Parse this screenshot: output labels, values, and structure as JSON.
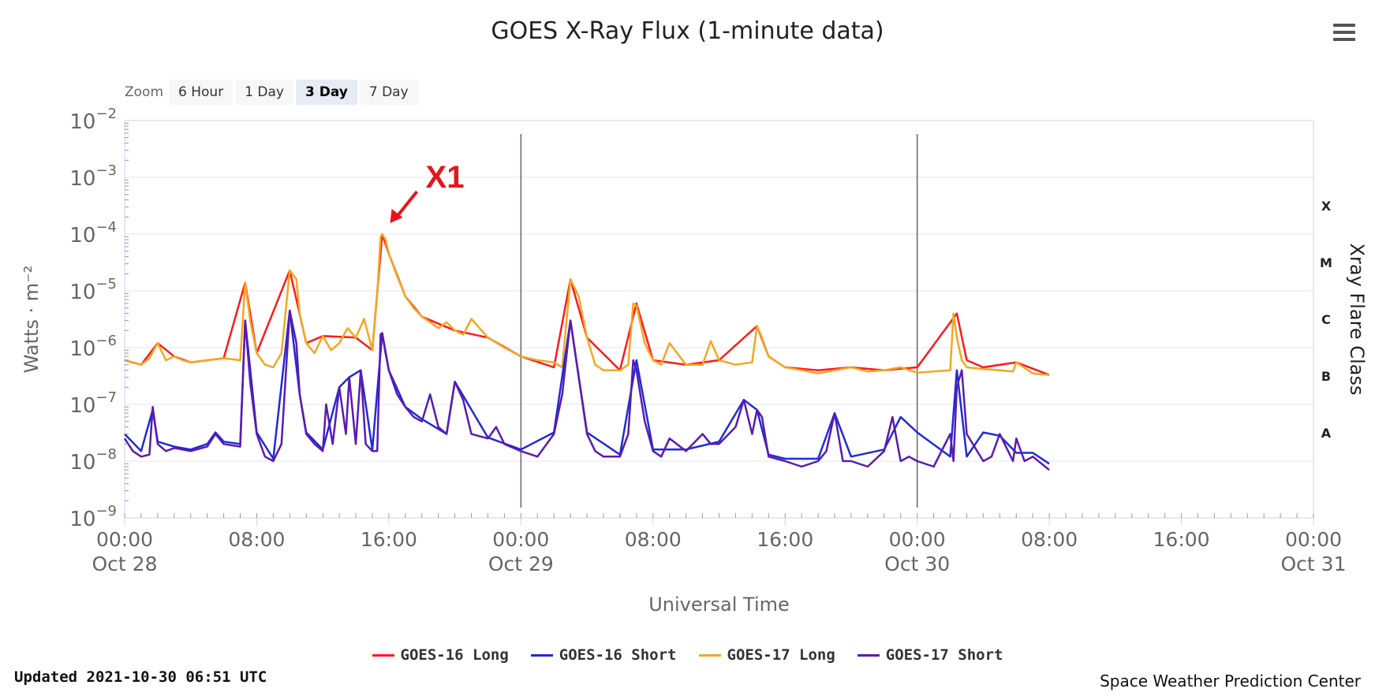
{
  "title": "GOES X-Ray Flux (1-minute data)",
  "zoom": {
    "label": "Zoom",
    "options": [
      "6 Hour",
      "1 Day",
      "3 Day",
      "7 Day"
    ],
    "selected": "3 Day"
  },
  "legend": [
    {
      "name": "GOES-16 Long",
      "color": "#ff1a1a"
    },
    {
      "name": "GOES-16 Short",
      "color": "#1f2bd6"
    },
    {
      "name": "GOES-17 Long",
      "color": "#f5a623"
    },
    {
      "name": "GOES-17 Short",
      "color": "#5a1bb0"
    }
  ],
  "footer": {
    "updated": "Updated 2021-10-30 06:51 UTC",
    "credit": "Space Weather Prediction Center"
  },
  "annotation": {
    "text": "X1",
    "color": "#e8141c"
  },
  "chart_data": {
    "type": "line",
    "title": "GOES X-Ray Flux (1-minute data)",
    "xlabel": "Universal Time",
    "ylabel": "Watts · m⁻²",
    "y2label": "Xray Flare Class",
    "yscale": "log",
    "ylim_exponent": [
      -9,
      -2
    ],
    "xlim_hours": [
      0,
      72
    ],
    "y_ticks": [
      {
        "exp": -2,
        "base": "10",
        "sup": "−2"
      },
      {
        "exp": -3,
        "base": "10",
        "sup": "−3"
      },
      {
        "exp": -4,
        "base": "10",
        "sup": "−4"
      },
      {
        "exp": -5,
        "base": "10",
        "sup": "−5"
      },
      {
        "exp": -6,
        "base": "10",
        "sup": "−6"
      },
      {
        "exp": -7,
        "base": "10",
        "sup": "−7"
      },
      {
        "exp": -8,
        "base": "10",
        "sup": "−8"
      },
      {
        "exp": -9,
        "base": "10",
        "sup": "−9"
      }
    ],
    "x_ticks": [
      {
        "hour": 0,
        "time": "00:00",
        "date": "Oct 28"
      },
      {
        "hour": 8,
        "time": "08:00",
        "date": ""
      },
      {
        "hour": 16,
        "time": "16:00",
        "date": ""
      },
      {
        "hour": 24,
        "time": "00:00",
        "date": "Oct 29"
      },
      {
        "hour": 32,
        "time": "08:00",
        "date": ""
      },
      {
        "hour": 40,
        "time": "16:00",
        "date": ""
      },
      {
        "hour": 48,
        "time": "00:00",
        "date": "Oct 30"
      },
      {
        "hour": 56,
        "time": "08:00",
        "date": ""
      },
      {
        "hour": 64,
        "time": "16:00",
        "date": ""
      },
      {
        "hour": 72,
        "time": "00:00",
        "date": "Oct 31"
      }
    ],
    "day_boundaries_hours": [
      24,
      48
    ],
    "flare_classes": [
      {
        "label": "X",
        "flux": 0.0001
      },
      {
        "label": "M",
        "flux": 1e-05
      },
      {
        "label": "C",
        "flux": 1e-06
      },
      {
        "label": "B",
        "flux": 1e-07
      },
      {
        "label": "A",
        "flux": 1e-08
      }
    ],
    "annotation": {
      "text": "X1",
      "hour": 15.6,
      "flux": 0.0001
    },
    "series": [
      {
        "name": "GOES-17 Long",
        "color": "#f5a623",
        "x": [
          0,
          0.5,
          1,
          1.5,
          2,
          2.5,
          3,
          3.5,
          4,
          5,
          6,
          7,
          7.3,
          7.6,
          8,
          8.5,
          9,
          9.5,
          10,
          10.4,
          10.6,
          11,
          11.5,
          12,
          12.5,
          13,
          13.5,
          14,
          14.5,
          15,
          15.3,
          15.5,
          15.6,
          15.8,
          16,
          16.5,
          17,
          17.5,
          18,
          18.5,
          19,
          19.5,
          20,
          20.5,
          21,
          22,
          23,
          24,
          25,
          26,
          26.5,
          27,
          27.5,
          28,
          28.5,
          29,
          30,
          30.5,
          30.8,
          31,
          31.5,
          32,
          32.5,
          33,
          34,
          35,
          35.5,
          36,
          37,
          38,
          38.3,
          38.6,
          39,
          40,
          41,
          42,
          43,
          44,
          45,
          46,
          47,
          48,
          49,
          50,
          50.2,
          50.4,
          50.7,
          51,
          52,
          53,
          53.8,
          54,
          55,
          56
        ],
        "y": [
          6e-07,
          5.5e-07,
          5e-07,
          6.5e-07,
          1.2e-06,
          6e-07,
          7e-07,
          6e-07,
          5.5e-07,
          6e-07,
          6.5e-07,
          6e-07,
          1.4e-05,
          3e-06,
          8e-07,
          5e-07,
          4.5e-07,
          8e-07,
          2.3e-05,
          1.6e-05,
          4e-06,
          1.2e-06,
          8e-07,
          1.6e-06,
          9e-07,
          1.2e-06,
          2.2e-06,
          1.5e-06,
          3.2e-06,
          9e-07,
          9e-06,
          9e-05,
          0.0001,
          8e-05,
          4.5e-05,
          1.8e-05,
          8e-06,
          5e-06,
          3.5e-06,
          2.8e-06,
          2.2e-06,
          2.8e-06,
          2e-06,
          1.7e-06,
          3.2e-06,
          1.5e-06,
          1e-06,
          7e-07,
          6e-07,
          5.5e-07,
          4.5e-07,
          1.6e-05,
          8e-06,
          1.5e-06,
          5e-07,
          4e-07,
          4e-07,
          5e-07,
          6e-06,
          5.5e-06,
          1.2e-06,
          6e-07,
          5e-07,
          1.2e-06,
          5e-07,
          5e-07,
          1.3e-06,
          6e-07,
          5e-07,
          5.5e-07,
          2.4e-06,
          1.5e-06,
          7e-07,
          4.5e-07,
          4e-07,
          3.5e-07,
          4e-07,
          4.5e-07,
          3.8e-07,
          4e-07,
          4.5e-07,
          3.6e-07,
          3.8e-07,
          4e-07,
          4e-06,
          1.5e-06,
          6e-07,
          4.5e-07,
          4.2e-07,
          4e-07,
          3.8e-07,
          5.5e-07,
          3.5e-07,
          3.3e-07
        ]
      },
      {
        "name": "GOES-16 Long",
        "color": "#ff1a1a",
        "x": [
          0,
          1,
          2,
          3,
          4,
          6,
          7.3,
          8,
          10,
          11,
          12,
          14,
          15,
          15.6,
          16,
          17,
          18,
          20,
          22,
          24,
          26,
          27,
          28,
          30,
          31,
          32,
          34,
          36,
          38.3,
          39,
          40,
          42,
          44,
          46,
          48,
          50.4,
          51,
          52,
          54,
          56
        ],
        "y": [
          6e-07,
          5e-07,
          1.2e-06,
          7e-07,
          5.5e-07,
          6.5e-07,
          1.4e-05,
          8e-07,
          2.3e-05,
          1.2e-06,
          1.6e-06,
          1.5e-06,
          9e-07,
          0.0001,
          4.5e-05,
          8e-06,
          3.5e-06,
          2e-06,
          1.5e-06,
          7e-07,
          4.5e-07,
          1.6e-05,
          1.5e-06,
          4e-07,
          6e-06,
          6e-07,
          5e-07,
          6e-07,
          2.4e-06,
          7e-07,
          4.5e-07,
          4e-07,
          4.5e-07,
          4e-07,
          4.5e-07,
          4e-06,
          6e-07,
          4.5e-07,
          5.5e-07,
          3.3e-07
        ]
      },
      {
        "name": "GOES-17 Short",
        "color": "#5a1bb0",
        "x": [
          0,
          0.5,
          1,
          1.5,
          1.7,
          2,
          2.5,
          3,
          3.5,
          4,
          5,
          5.5,
          6,
          7,
          7.3,
          7.6,
          8,
          8.5,
          9,
          9.5,
          10,
          10.4,
          10.6,
          11,
          11.5,
          12,
          12.2,
          12.6,
          13,
          13.4,
          13.6,
          14,
          14.3,
          14.6,
          15,
          15.3,
          15.5,
          15.6,
          15.8,
          16,
          16.5,
          17,
          17.5,
          18,
          18.5,
          19,
          19.5,
          20,
          20.5,
          21,
          22,
          22.5,
          23,
          24,
          25,
          26,
          26.5,
          27,
          27.5,
          28,
          28.5,
          29,
          30,
          30.5,
          30.8,
          31,
          31.5,
          32,
          32.5,
          33,
          34,
          35,
          35.5,
          36,
          37,
          37.5,
          38,
          38.3,
          38.6,
          39,
          40,
          41,
          42,
          42.5,
          43,
          43.5,
          44,
          45,
          46,
          46.5,
          47,
          47.5,
          48,
          49,
          50,
          50.2,
          50.4,
          50.7,
          51,
          52,
          52.5,
          53,
          53.8,
          54,
          54.5,
          55,
          56
        ],
        "y": [
          2.5e-08,
          1.5e-08,
          1.2e-08,
          1.3e-08,
          9e-08,
          2e-08,
          1.5e-08,
          1.7e-08,
          1.6e-08,
          1.5e-08,
          1.8e-08,
          3e-08,
          2e-08,
          1.8e-08,
          3e-06,
          2.5e-07,
          3e-08,
          1.2e-08,
          1e-08,
          2e-08,
          4.5e-06,
          1.2e-06,
          1.5e-07,
          3e-08,
          2e-08,
          1.5e-08,
          1e-07,
          2e-08,
          2e-07,
          3e-08,
          3e-07,
          2e-08,
          4e-07,
          2e-08,
          1.5e-08,
          1.5e-08,
          1.7e-06,
          1.8e-06,
          8e-07,
          4e-07,
          1.5e-07,
          9e-08,
          6e-08,
          5e-08,
          1.5e-07,
          4e-08,
          3e-08,
          2.5e-07,
          1.2e-07,
          3e-08,
          2.5e-08,
          4e-08,
          2e-08,
          1.5e-08,
          1.2e-08,
          3e-08,
          1.5e-07,
          3e-06,
          3e-07,
          3e-08,
          1.5e-08,
          1.2e-08,
          1.2e-08,
          3e-08,
          6e-07,
          4e-07,
          5e-08,
          1.5e-08,
          1.2e-08,
          2.5e-08,
          1.5e-08,
          3e-08,
          2e-08,
          2e-08,
          4e-08,
          1.2e-07,
          3e-08,
          8e-08,
          6e-08,
          1.2e-08,
          1e-08,
          8e-09,
          1e-08,
          1.5e-08,
          7e-08,
          1e-08,
          1e-08,
          8e-09,
          1.5e-08,
          6e-08,
          1e-08,
          1.2e-08,
          1e-08,
          8e-09,
          3e-08,
          1e-08,
          2e-07,
          4e-07,
          3e-08,
          1e-08,
          1.2e-08,
          3e-08,
          1e-08,
          2.5e-08,
          1e-08,
          1.2e-08,
          7e-09
        ]
      },
      {
        "name": "GOES-16 Short",
        "color": "#1f2bd6",
        "x": [
          0,
          1,
          1.7,
          2,
          3,
          4,
          5,
          5.5,
          6,
          7,
          7.3,
          8,
          9,
          10,
          10.6,
          11,
          12,
          13,
          13.6,
          14.3,
          15,
          15.6,
          16,
          17,
          18,
          19.5,
          20,
          22,
          24,
          26,
          27,
          28,
          30,
          31,
          32,
          34,
          36,
          37.5,
          38.3,
          39,
          40,
          42,
          43,
          44,
          46,
          47,
          48,
          50,
          50.4,
          51,
          52,
          53,
          54,
          55,
          56
        ],
        "y": [
          3e-08,
          1.5e-08,
          8e-08,
          2.2e-08,
          1.8e-08,
          1.6e-08,
          2e-08,
          3.2e-08,
          2.2e-08,
          2e-08,
          3e-06,
          3.2e-08,
          1.1e-08,
          4.5e-06,
          1.5e-07,
          3.2e-08,
          1.6e-08,
          2e-07,
          3e-07,
          4e-07,
          1.6e-08,
          1.8e-06,
          4e-07,
          9e-08,
          5.5e-08,
          3e-08,
          2.5e-07,
          2.6e-08,
          1.6e-08,
          3.2e-08,
          3e-06,
          3.2e-08,
          1.3e-08,
          6e-07,
          1.6e-08,
          1.6e-08,
          2.2e-08,
          1.2e-07,
          8e-08,
          1.3e-08,
          1.1e-08,
          1.1e-08,
          7e-08,
          1.2e-08,
          1.6e-08,
          6e-08,
          3.2e-08,
          1.2e-08,
          4e-07,
          1.2e-08,
          3.2e-08,
          2.8e-08,
          1.4e-08,
          1.4e-08,
          9e-09
        ]
      }
    ]
  }
}
